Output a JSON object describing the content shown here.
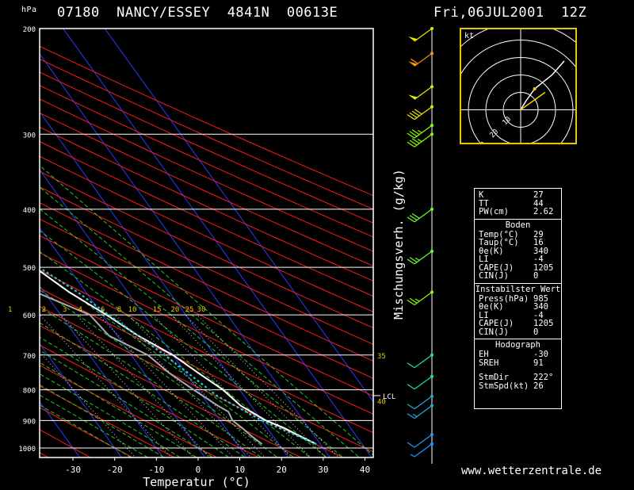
{
  "header": {
    "hpa_unit": "hPa",
    "station": "07180  NANCY/ESSEY  4841N  00613E",
    "datetime": "Fri,06JUL2001  12Z"
  },
  "footer": {
    "site": "www.wetterzentrale.de"
  },
  "axes": {
    "xlabel": "Temperatur (°C)",
    "mixing_label": "Mischungsverh. (g/kg)",
    "pressure_ticks": [
      "200",
      "300",
      "400",
      "500",
      "600",
      "700",
      "800",
      "900",
      "1000"
    ],
    "temp_ticks": [
      "-30",
      "-20",
      "-10",
      "0",
      "10",
      "20",
      "30",
      "40"
    ],
    "mixing_ticks": [
      "1",
      "2",
      "3",
      "4",
      "6",
      "8",
      "10",
      "15",
      "20",
      "25",
      "30"
    ],
    "side_labels": [
      "35",
      "40"
    ],
    "lcl": "LCL"
  },
  "hodograph": {
    "unit": "kt",
    "ring_labels": [
      "10",
      "20",
      "30"
    ]
  },
  "colors": {
    "temperature": "#ffffff",
    "dewpoint": "#aaaaaa",
    "parcel": "#22cccc",
    "isotherm": "#2b3bff",
    "dry_adiabat": "#ff1a1a",
    "moist_adiabat": "#22c922",
    "mixing_ratio": "#dddddd",
    "frame": "#ffffff",
    "hodo_frame": "#e8c800",
    "value_label": "#e8c800"
  },
  "chart_data": {
    "type": "line",
    "title": "07180  NANCY/ESSEY  4841N  00613E",
    "xlabel": "Temperatur (°C)",
    "ylabel": "hPa",
    "x_range": [
      -38,
      42
    ],
    "pressure_range": [
      200,
      1000
    ],
    "y_scale": "log-pressure, skew-T",
    "series": [
      {
        "name": "temperature",
        "points": [
          {
            "p": 985,
            "t": 29
          },
          {
            "p": 950,
            "t": 26
          },
          {
            "p": 925,
            "t": 24
          },
          {
            "p": 900,
            "t": 21
          },
          {
            "p": 850,
            "t": 17.5
          },
          {
            "p": 800,
            "t": 16
          },
          {
            "p": 750,
            "t": 13
          },
          {
            "p": 700,
            "t": 10
          },
          {
            "p": 650,
            "t": 5
          },
          {
            "p": 600,
            "t": 1
          },
          {
            "p": 550,
            "t": -4
          },
          {
            "p": 500,
            "t": -8
          },
          {
            "p": 450,
            "t": -13
          },
          {
            "p": 400,
            "t": -19
          },
          {
            "p": 350,
            "t": -27
          },
          {
            "p": 300,
            "t": -35
          },
          {
            "p": 250,
            "t": -45
          },
          {
            "p": 220,
            "t": -48
          },
          {
            "p": 200,
            "t": -51
          }
        ]
      },
      {
        "name": "dewpoint",
        "points": [
          {
            "p": 985,
            "t": 16
          },
          {
            "p": 960,
            "t": 15
          },
          {
            "p": 925,
            "t": 14
          },
          {
            "p": 900,
            "t": 13
          },
          {
            "p": 870,
            "t": 13.5
          },
          {
            "p": 850,
            "t": 12
          },
          {
            "p": 800,
            "t": 9
          },
          {
            "p": 750,
            "t": 6
          },
          {
            "p": 700,
            "t": 4
          },
          {
            "p": 650,
            "t": -2
          },
          {
            "p": 600,
            "t": -3
          },
          {
            "p": 550,
            "t": -12
          },
          {
            "p": 500,
            "t": -28
          },
          {
            "p": 490,
            "t": -42
          },
          {
            "p": 470,
            "t": -26
          },
          {
            "p": 450,
            "t": -27
          },
          {
            "p": 420,
            "t": -30
          },
          {
            "p": 400,
            "t": -31
          },
          {
            "p": 350,
            "t": -39
          },
          {
            "p": 320,
            "t": -45
          }
        ]
      },
      {
        "name": "parcel",
        "points": [
          {
            "p": 985,
            "t": 29
          },
          {
            "p": 900,
            "t": 20
          },
          {
            "p": 818,
            "t": 13.5
          },
          {
            "p": 750,
            "t": 10.5
          },
          {
            "p": 700,
            "t": 8
          },
          {
            "p": 650,
            "t": 5
          },
          {
            "p": 600,
            "t": 1.5
          },
          {
            "p": 550,
            "t": -2
          },
          {
            "p": 500,
            "t": -7
          },
          {
            "p": 450,
            "t": -11
          },
          {
            "p": 400,
            "t": -17
          },
          {
            "p": 350,
            "t": -23
          },
          {
            "p": 300,
            "t": -31
          },
          {
            "p": 250,
            "t": -41
          },
          {
            "p": 210,
            "t": -50
          }
        ]
      }
    ],
    "wind_barbs": [
      {
        "p": 200,
        "color": "#e8e800",
        "speed": "50"
      },
      {
        "p": 220,
        "color": "#ff9900",
        "speed": "60"
      },
      {
        "p": 250,
        "color": "#e8e800",
        "speed": "50"
      },
      {
        "p": 270,
        "color": "#e8e800",
        "speed": "40"
      },
      {
        "p": 290,
        "color": "#88ff00",
        "speed": "35"
      },
      {
        "p": 300,
        "color": "#88ff00",
        "speed": "35"
      },
      {
        "p": 400,
        "color": "#66ff33",
        "speed": "30"
      },
      {
        "p": 470,
        "color": "#66ff33",
        "speed": "25"
      },
      {
        "p": 550,
        "color": "#88ff00",
        "speed": "25"
      },
      {
        "p": 700,
        "color": "#22ddaa",
        "speed": "10"
      },
      {
        "p": 760,
        "color": "#22ddaa",
        "speed": "10"
      },
      {
        "p": 820,
        "color": "#22aadd",
        "speed": "10"
      },
      {
        "p": 850,
        "color": "#22aadd",
        "speed": "15"
      },
      {
        "p": 950,
        "color": "#2299ff",
        "speed": "10"
      },
      {
        "p": 985,
        "color": "#2299ff",
        "speed": "5"
      }
    ],
    "hodograph_points": [
      {
        "u": 0,
        "v": 0
      },
      {
        "u": 3,
        "v": 5
      },
      {
        "u": 8,
        "v": 12
      },
      {
        "u": 18,
        "v": 20
      },
      {
        "u": 25,
        "v": 28
      }
    ]
  },
  "indices": {
    "rows": [
      {
        "label": "K",
        "value": "27"
      },
      {
        "label": "TT",
        "value": "44"
      },
      {
        "label": "PW(cm)",
        "value": "2.62"
      }
    ],
    "boden_title": "Boden",
    "boden": [
      {
        "label": "Temp(°C)",
        "value": "29"
      },
      {
        "label": "Taup(°C)",
        "value": "16"
      },
      {
        "label": "θe(K)",
        "value": "340"
      },
      {
        "label": "LI",
        "value": "-4"
      },
      {
        "label": "CAPE(J)",
        "value": "1205"
      },
      {
        "label": "CIN(J)",
        "value": "0"
      }
    ],
    "instab_title": "Instabilster Wert",
    "instab": [
      {
        "label": "Press(hPa)",
        "value": "985"
      },
      {
        "label": "θe(K)",
        "value": "340"
      },
      {
        "label": "LI",
        "value": "-4"
      },
      {
        "label": "CAPE(J)",
        "value": "1205"
      },
      {
        "label": "CIN(J)",
        "value": "0"
      }
    ],
    "hodo_title": "Hodograph",
    "hodo": [
      {
        "label": "EH",
        "value": "-30"
      },
      {
        "label": "SREH",
        "value": "91"
      },
      {
        "label": "StmDir",
        "value": "222°"
      },
      {
        "label": "StmSpd(kt)",
        "value": "26"
      }
    ]
  }
}
